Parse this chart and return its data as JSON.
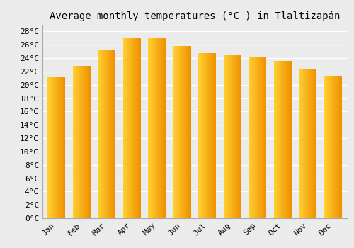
{
  "title": "Average monthly temperatures (°C ) in Tlaltizapán",
  "months": [
    "Jan",
    "Feb",
    "Mar",
    "Apr",
    "May",
    "Jun",
    "Jul",
    "Aug",
    "Sep",
    "Oct",
    "Nov",
    "Dec"
  ],
  "values": [
    21.2,
    22.8,
    25.2,
    27.0,
    27.1,
    25.8,
    24.7,
    24.5,
    24.1,
    23.6,
    22.3,
    21.3
  ],
  "bar_color_left": "#FFD050",
  "bar_color_right": "#F5A000",
  "bar_color_mid": "#FFA500",
  "ylim": [
    0,
    29
  ],
  "yticks": [
    0,
    2,
    4,
    6,
    8,
    10,
    12,
    14,
    16,
    18,
    20,
    22,
    24,
    26,
    28
  ],
  "ytick_labels": [
    "0°C",
    "2°C",
    "4°C",
    "6°C",
    "8°C",
    "10°C",
    "12°C",
    "14°C",
    "16°C",
    "18°C",
    "20°C",
    "22°C",
    "24°C",
    "26°C",
    "28°C"
  ],
  "background_color": "#ebebeb",
  "grid_color": "#ffffff",
  "title_fontsize": 10,
  "tick_fontsize": 8,
  "bar_width": 0.7,
  "n_gradient_steps": 50
}
